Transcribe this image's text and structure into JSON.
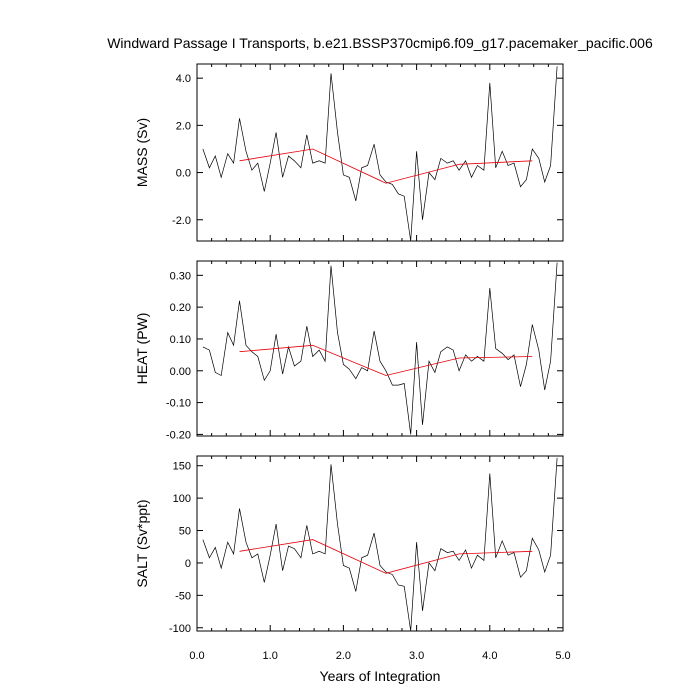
{
  "figure": {
    "title": "Windward Passage I Transports, b.e21.BSSP370cmip6.f09_g17.pacemaker_pacific.006",
    "xlabel": "Years of Integration"
  },
  "colors": {
    "raw": "#000000",
    "trend": "#e8000b"
  },
  "chart_data": [
    {
      "type": "line",
      "ylabel": "MASS (Sv)",
      "xlim": [
        0.0,
        5.0
      ],
      "ylim": [
        -2.9,
        4.6
      ],
      "xticks": [
        0.0,
        1.0,
        2.0,
        3.0,
        4.0,
        5.0
      ],
      "xtick_labels": [
        "0.0",
        "1.0",
        "2.0",
        "3.0",
        "4.0",
        "5.0"
      ],
      "yticks": [
        -2.0,
        0.0,
        2.0,
        4.0
      ],
      "ytick_labels": [
        "-2.0",
        "0.0",
        "2.0",
        "4.0"
      ],
      "series": [
        {
          "role": "monthly",
          "x": [
            0.08,
            0.17,
            0.25,
            0.33,
            0.42,
            0.5,
            0.58,
            0.67,
            0.75,
            0.83,
            0.92,
            1.0,
            1.08,
            1.17,
            1.25,
            1.33,
            1.42,
            1.5,
            1.58,
            1.67,
            1.75,
            1.83,
            1.92,
            2.0,
            2.08,
            2.17,
            2.25,
            2.33,
            2.42,
            2.5,
            2.58,
            2.67,
            2.75,
            2.83,
            2.92,
            3.0,
            3.08,
            3.17,
            3.25,
            3.33,
            3.42,
            3.5,
            3.58,
            3.67,
            3.75,
            3.83,
            3.92,
            4.0,
            4.08,
            4.17,
            4.25,
            4.33,
            4.42,
            4.5,
            4.58,
            4.67,
            4.75,
            4.83,
            4.92
          ],
          "values": [
            1.0,
            0.2,
            0.7,
            -0.2,
            0.8,
            0.4,
            2.3,
            0.9,
            0.1,
            0.4,
            -0.8,
            0.4,
            1.7,
            -0.2,
            0.7,
            0.5,
            0.2,
            1.6,
            0.4,
            0.5,
            0.4,
            4.2,
            1.7,
            -0.1,
            -0.2,
            -1.2,
            0.2,
            0.3,
            1.2,
            -0.1,
            -0.4,
            -0.5,
            -0.9,
            -1.0,
            -2.9,
            0.9,
            -2.0,
            0.0,
            -0.3,
            0.6,
            0.4,
            0.5,
            0.1,
            0.5,
            -0.2,
            0.3,
            0.1,
            3.8,
            0.2,
            0.9,
            0.3,
            0.4,
            -0.6,
            -0.3,
            1.0,
            0.6,
            -0.4,
            0.3,
            4.5
          ]
        },
        {
          "role": "annual",
          "x": [
            0.58,
            1.58,
            2.58,
            3.58,
            4.58
          ],
          "values": [
            0.5,
            1.0,
            -0.45,
            0.35,
            0.5
          ]
        }
      ]
    },
    {
      "type": "line",
      "ylabel": "HEAT (PW)",
      "xlim": [
        0.0,
        5.0
      ],
      "ylim": [
        -0.205,
        0.345
      ],
      "xticks": [
        0.0,
        1.0,
        2.0,
        3.0,
        4.0,
        5.0
      ],
      "xtick_labels": [
        "0.0",
        "1.0",
        "2.0",
        "3.0",
        "4.0",
        "5.0"
      ],
      "yticks": [
        -0.2,
        -0.1,
        0.0,
        0.1,
        0.2,
        0.3
      ],
      "ytick_labels": [
        "-0.20",
        "-0.10",
        "0.00",
        "0.10",
        "0.20",
        "0.30"
      ],
      "series": [
        {
          "role": "monthly",
          "x": [
            0.08,
            0.17,
            0.25,
            0.33,
            0.42,
            0.5,
            0.58,
            0.67,
            0.75,
            0.83,
            0.92,
            1.0,
            1.08,
            1.17,
            1.25,
            1.33,
            1.42,
            1.5,
            1.58,
            1.67,
            1.75,
            1.83,
            1.92,
            2.0,
            2.08,
            2.17,
            2.25,
            2.33,
            2.42,
            2.5,
            2.58,
            2.67,
            2.75,
            2.83,
            2.92,
            3.0,
            3.08,
            3.17,
            3.25,
            3.33,
            3.42,
            3.5,
            3.58,
            3.67,
            3.75,
            3.83,
            3.92,
            4.0,
            4.08,
            4.17,
            4.25,
            4.33,
            4.42,
            4.5,
            4.58,
            4.67,
            4.75,
            4.83,
            4.92
          ],
          "values": [
            0.075,
            0.065,
            -0.005,
            -0.015,
            0.12,
            0.08,
            0.22,
            0.08,
            0.06,
            0.045,
            -0.03,
            0.0,
            0.115,
            -0.01,
            0.075,
            0.015,
            0.03,
            0.14,
            0.045,
            0.065,
            0.03,
            0.33,
            0.12,
            0.02,
            0.005,
            -0.025,
            0.01,
            0.0,
            0.125,
            0.03,
            0.0,
            -0.045,
            -0.045,
            -0.04,
            -0.2,
            0.09,
            -0.17,
            0.03,
            -0.005,
            0.06,
            0.075,
            0.065,
            0.0,
            0.05,
            0.03,
            0.045,
            0.03,
            0.26,
            0.07,
            0.055,
            0.035,
            0.05,
            -0.05,
            0.02,
            0.145,
            0.065,
            -0.06,
            0.03,
            0.34
          ]
        },
        {
          "role": "annual",
          "x": [
            0.58,
            1.58,
            2.58,
            3.58,
            4.58
          ],
          "values": [
            0.06,
            0.08,
            -0.015,
            0.04,
            0.045
          ]
        }
      ]
    },
    {
      "type": "line",
      "ylabel": "SALT (Sv*ppt)",
      "xlim": [
        0.0,
        5.0
      ],
      "ylim": [
        -105,
        165
      ],
      "xticks": [
        0.0,
        1.0,
        2.0,
        3.0,
        4.0,
        5.0
      ],
      "xtick_labels": [
        "0.0",
        "1.0",
        "2.0",
        "3.0",
        "4.0",
        "5.0"
      ],
      "yticks": [
        -100,
        -50,
        0,
        50,
        100,
        150
      ],
      "ytick_labels": [
        "-100",
        "-50",
        "0",
        "50",
        "100",
        "150"
      ],
      "series": [
        {
          "role": "monthly",
          "x": [
            0.08,
            0.17,
            0.25,
            0.33,
            0.42,
            0.5,
            0.58,
            0.67,
            0.75,
            0.83,
            0.92,
            1.0,
            1.08,
            1.17,
            1.25,
            1.33,
            1.42,
            1.5,
            1.58,
            1.67,
            1.75,
            1.83,
            1.92,
            2.0,
            2.08,
            2.17,
            2.25,
            2.33,
            2.42,
            2.5,
            2.58,
            2.67,
            2.75,
            2.83,
            2.92,
            3.0,
            3.08,
            3.17,
            3.25,
            3.33,
            3.42,
            3.5,
            3.58,
            3.67,
            3.75,
            3.83,
            3.92,
            4.0,
            4.08,
            4.17,
            4.25,
            4.33,
            4.42,
            4.5,
            4.58,
            4.67,
            4.75,
            4.83,
            4.92
          ],
          "values": [
            36,
            8,
            24,
            -8,
            32,
            14,
            84,
            32,
            8,
            14,
            -30,
            12,
            60,
            -12,
            26,
            22,
            8,
            58,
            14,
            18,
            14,
            152,
            60,
            -4,
            -8,
            -44,
            8,
            12,
            46,
            -4,
            -14,
            -18,
            -34,
            -36,
            -105,
            32,
            -74,
            0,
            -12,
            22,
            16,
            18,
            4,
            20,
            -8,
            12,
            4,
            138,
            8,
            34,
            12,
            16,
            -22,
            -12,
            38,
            20,
            -14,
            12,
            162
          ]
        },
        {
          "role": "annual",
          "x": [
            0.58,
            1.58,
            2.58,
            3.58,
            4.58
          ],
          "values": [
            18,
            36,
            -16,
            14,
            18
          ]
        }
      ]
    }
  ]
}
